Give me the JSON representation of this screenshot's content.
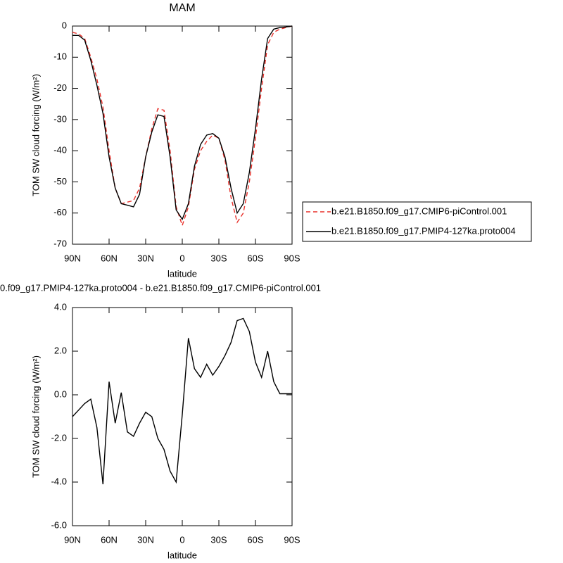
{
  "chart_data": [
    {
      "type": "line",
      "title": "MAM",
      "xlabel": "latitude",
      "ylabel": "TOM SW cloud forcing (W/m²)",
      "x": [
        90,
        85,
        80,
        75,
        70,
        65,
        60,
        55,
        50,
        45,
        40,
        35,
        30,
        25,
        20,
        15,
        10,
        5,
        0,
        -5,
        -10,
        -15,
        -20,
        -25,
        -30,
        -35,
        -40,
        -45,
        -50,
        -55,
        -60,
        -65,
        -70,
        -75,
        -80,
        -85,
        -90
      ],
      "series": [
        {
          "name": "b.e21.B1850.f09_g17.CMIP6-piControl.001",
          "color": "#e8302a",
          "dash": true,
          "values": [
            -2,
            -2.5,
            -4,
            -10,
            -17,
            -26,
            -40,
            -52,
            -57,
            -56.5,
            -56,
            -52,
            -42,
            -33,
            -26.5,
            -27,
            -40,
            -58,
            -64,
            -58,
            -46,
            -40,
            -37,
            -35,
            -36,
            -43,
            -55,
            -63,
            -60,
            -50,
            -36,
            -20,
            -6,
            -2,
            -1,
            -0.5,
            0
          ]
        },
        {
          "name": "b.e21.B1850.f09_g17.PMIP4-127ka.proto004",
          "color": "#000000",
          "dash": false,
          "values": [
            -3,
            -3,
            -4.5,
            -11,
            -19,
            -28,
            -42,
            -52,
            -57,
            -57.5,
            -58,
            -54,
            -42,
            -34,
            -28.5,
            -29,
            -42,
            -59,
            -62,
            -57,
            -45,
            -38,
            -35,
            -34.5,
            -36,
            -42,
            -52,
            -60,
            -57,
            -47,
            -33,
            -17,
            -4,
            -1,
            -0.5,
            -0.3,
            0
          ]
        }
      ],
      "xlim": [
        90,
        -90
      ],
      "xticks": [
        {
          "value": 90,
          "label": "90N"
        },
        {
          "value": 60,
          "label": "60N"
        },
        {
          "value": 30,
          "label": "30N"
        },
        0,
        {
          "value": -30,
          "label": "30S"
        },
        {
          "value": -60,
          "label": "60S"
        },
        {
          "value": -90,
          "label": "90S"
        }
      ],
      "ylim": [
        -70,
        0
      ],
      "yticks": [
        0,
        -10,
        -20,
        -30,
        -40,
        -50,
        -60,
        -70
      ],
      "legend": "right"
    },
    {
      "type": "line",
      "title": "0.f09_g17.PMIP4-127ka.proto004 - b.e21.B1850.f09_g17.CMIP6-piControl.001",
      "xlabel": "latitude",
      "ylabel": "TOM SW cloud forcing (W/m²)",
      "x": [
        90,
        85,
        80,
        75,
        70,
        65,
        60,
        55,
        50,
        45,
        40,
        35,
        30,
        25,
        20,
        15,
        10,
        5,
        0,
        -5,
        -10,
        -15,
        -20,
        -25,
        -30,
        -35,
        -40,
        -45,
        -50,
        -55,
        -60,
        -65,
        -70,
        -75,
        -80,
        -85,
        -90
      ],
      "series": [
        {
          "name": null,
          "color": "#000000",
          "dash": false,
          "values": [
            -1.0,
            -0.7,
            -0.4,
            -0.2,
            -1.5,
            -4.1,
            0.6,
            -1.3,
            0.1,
            -1.7,
            -1.9,
            -1.3,
            -0.8,
            -1.0,
            -2.0,
            -2.5,
            -3.5,
            -4.0,
            -0.9,
            2.6,
            1.2,
            0.8,
            1.4,
            0.9,
            1.3,
            1.8,
            2.4,
            3.4,
            3.5,
            2.9,
            1.5,
            0.8,
            2.0,
            0.6,
            0.05,
            0.05,
            0.05
          ]
        }
      ],
      "xlim": [
        90,
        -90
      ],
      "xticks": [
        {
          "value": 90,
          "label": "90N"
        },
        {
          "value": 60,
          "label": "60N"
        },
        {
          "value": 30,
          "label": "30N"
        },
        0,
        {
          "value": -30,
          "label": "30S"
        },
        {
          "value": -60,
          "label": "60S"
        },
        {
          "value": -90,
          "label": "90S"
        }
      ],
      "ylim": [
        -6,
        4
      ],
      "yticks": [
        {
          "value": 4,
          "label": "4.0"
        },
        {
          "value": 2,
          "label": "2.0"
        },
        {
          "value": 0,
          "label": "0.0"
        },
        {
          "value": -2,
          "label": "-2.0"
        },
        {
          "value": -4,
          "label": "-4.0"
        },
        {
          "value": -6,
          "label": "-6.0"
        }
      ]
    }
  ]
}
